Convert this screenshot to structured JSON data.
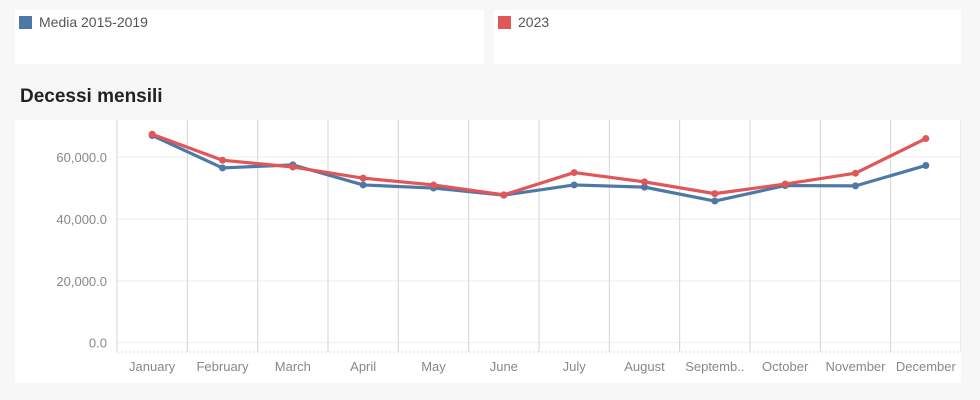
{
  "legend": [
    {
      "label": "Media 2015-2019",
      "color": "#4e79a7"
    },
    {
      "label": "2023",
      "color": "#e15759"
    }
  ],
  "chart_data": {
    "type": "line",
    "title": "Decessi mensili",
    "xlabel": "",
    "ylabel": "",
    "categories": [
      "January",
      "February",
      "March",
      "April",
      "May",
      "June",
      "July",
      "August",
      "Septemb..",
      "October",
      "November",
      "December"
    ],
    "y_ticks": [
      0,
      20000,
      40000,
      60000
    ],
    "y_tick_labels": [
      "0.0",
      "20,000.0",
      "40,000.0",
      "60,000.0"
    ],
    "ylim": [
      -3000,
      72000
    ],
    "grid": true,
    "legend_position": "top",
    "series": [
      {
        "name": "Media 2015-2019",
        "color": "#4e79a7",
        "values": [
          67000,
          56500,
          57500,
          51000,
          50000,
          47700,
          51000,
          50300,
          45800,
          50800,
          50700,
          57300
        ]
      },
      {
        "name": "2023",
        "color": "#e15759",
        "values": [
          67400,
          59000,
          56800,
          53200,
          51000,
          47800,
          55000,
          52000,
          48200,
          51300,
          54800,
          66000
        ]
      }
    ]
  }
}
